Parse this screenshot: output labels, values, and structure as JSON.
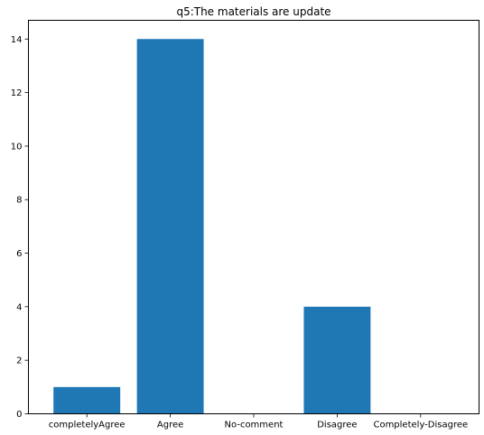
{
  "chart_data": {
    "type": "bar",
    "title": "q5:The materials are update",
    "xlabel": "",
    "ylabel": "",
    "categories": [
      "completelyAgree",
      "Agree",
      "No-comment",
      "Disagree",
      "Completely-Disagree"
    ],
    "values": [
      1,
      14,
      0,
      4,
      0
    ],
    "ylim": [
      0,
      14.7
    ],
    "yticks": [
      0,
      2,
      4,
      6,
      8,
      10,
      12,
      14
    ],
    "bar_color": "#1f77b4",
    "grid": false,
    "legend": "none"
  }
}
